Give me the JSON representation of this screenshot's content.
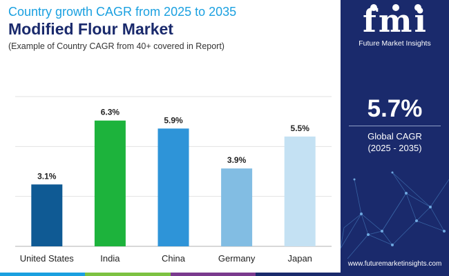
{
  "header": {
    "subtitle": "Country growth CAGR from 2025 to 2035",
    "title": "Modified Flour Market",
    "note": "(Example of Country CAGR from 40+ covered in Report)"
  },
  "brand": {
    "logo": "fmi",
    "caption": "Future Market Insights",
    "url": "www.futuremarketinsights.com"
  },
  "summary": {
    "value": "5.7%",
    "label": "Global CAGR",
    "range": "(2025 - 2035)"
  },
  "colors": {
    "panel": "#1a2a6c",
    "accent": "#1aa0e0",
    "strip": [
      "#1aa0e0",
      "#7dc242",
      "#7a3a8e",
      "#1a2a6c"
    ]
  },
  "chart_data": {
    "type": "bar",
    "title": "Modified Flour Market",
    "xlabel": "",
    "ylabel": "",
    "unit": "%",
    "ylim": [
      0,
      7.5
    ],
    "gridlines": [
      0,
      2.5,
      5,
      7.5
    ],
    "categories": [
      "United States",
      "India",
      "China",
      "Germany",
      "Japan"
    ],
    "values": [
      3.1,
      6.3,
      5.9,
      3.9,
      5.5
    ],
    "labels": [
      "3.1%",
      "6.3%",
      "5.9%",
      "3.9%",
      "5.5%"
    ],
    "colors": [
      "#0f5a94",
      "#1db33c",
      "#2e94d8",
      "#82bde3",
      "#c4e1f3"
    ]
  }
}
